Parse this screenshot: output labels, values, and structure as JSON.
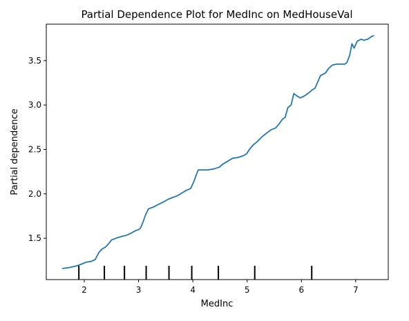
{
  "chart_data": {
    "type": "line",
    "title": "Partial Dependence Plot for MedInc on MedHouseVal",
    "xlabel": "MedInc",
    "ylabel": "Partial dependence",
    "xlim": [
      1.3,
      7.6
    ],
    "ylim": [
      1.035,
      3.91
    ],
    "xticks": [
      {
        "value": 2,
        "label": "2"
      },
      {
        "value": 3,
        "label": "3"
      },
      {
        "value": 4,
        "label": "4"
      },
      {
        "value": 5,
        "label": "5"
      },
      {
        "value": 6,
        "label": "6"
      },
      {
        "value": 7,
        "label": "7"
      }
    ],
    "yticks": [
      {
        "value": 1.5,
        "label": "1.5"
      },
      {
        "value": 2.0,
        "label": "2.0"
      },
      {
        "value": 2.5,
        "label": "2.5"
      },
      {
        "value": 3.0,
        "label": "3.0"
      },
      {
        "value": 3.5,
        "label": "3.5"
      }
    ],
    "grid": false,
    "series": [
      {
        "color": "#1f77b4",
        "x": [
          1.6,
          1.72,
          1.86,
          1.95,
          2.03,
          2.13,
          2.2,
          2.27,
          2.33,
          2.39,
          2.45,
          2.5,
          2.58,
          2.68,
          2.76,
          2.84,
          2.9,
          2.96,
          3.01,
          3.04,
          3.08,
          3.12,
          3.18,
          3.22,
          3.27,
          3.36,
          3.46,
          3.55,
          3.63,
          3.72,
          3.8,
          3.88,
          3.96,
          4.02,
          4.06,
          4.1,
          4.15,
          4.27,
          4.38,
          4.49,
          4.54,
          4.65,
          4.73,
          4.84,
          4.93,
          4.99,
          5.04,
          5.11,
          5.19,
          5.27,
          5.35,
          5.44,
          5.52,
          5.58,
          5.65,
          5.7,
          5.75,
          5.81,
          5.86,
          5.92,
          5.98,
          6.05,
          6.12,
          6.2,
          6.25,
          6.3,
          6.35,
          6.44,
          6.5,
          6.57,
          6.65,
          6.71,
          6.8,
          6.84,
          6.89,
          6.93,
          6.97,
          7.03,
          7.1,
          7.15,
          7.22,
          7.29,
          7.33
        ],
        "y": [
          1.16,
          1.17,
          1.19,
          1.21,
          1.23,
          1.24,
          1.26,
          1.34,
          1.38,
          1.4,
          1.44,
          1.48,
          1.5,
          1.52,
          1.53,
          1.55,
          1.57,
          1.59,
          1.6,
          1.62,
          1.68,
          1.75,
          1.83,
          1.84,
          1.85,
          1.88,
          1.91,
          1.94,
          1.96,
          1.98,
          2.01,
          2.04,
          2.06,
          2.14,
          2.21,
          2.27,
          2.27,
          2.27,
          2.28,
          2.3,
          2.33,
          2.37,
          2.4,
          2.41,
          2.43,
          2.45,
          2.5,
          2.55,
          2.59,
          2.64,
          2.68,
          2.72,
          2.74,
          2.78,
          2.84,
          2.86,
          2.97,
          3.0,
          3.13,
          3.1,
          3.08,
          3.1,
          3.13,
          3.17,
          3.19,
          3.26,
          3.33,
          3.36,
          3.41,
          3.45,
          3.46,
          3.46,
          3.46,
          3.48,
          3.56,
          3.69,
          3.64,
          3.72,
          3.74,
          3.73,
          3.74,
          3.77,
          3.78
        ]
      }
    ],
    "rug_x": [
      1.9,
      2.37,
      2.74,
      3.14,
      3.56,
      3.98,
      4.47,
      5.14,
      6.19
    ]
  }
}
